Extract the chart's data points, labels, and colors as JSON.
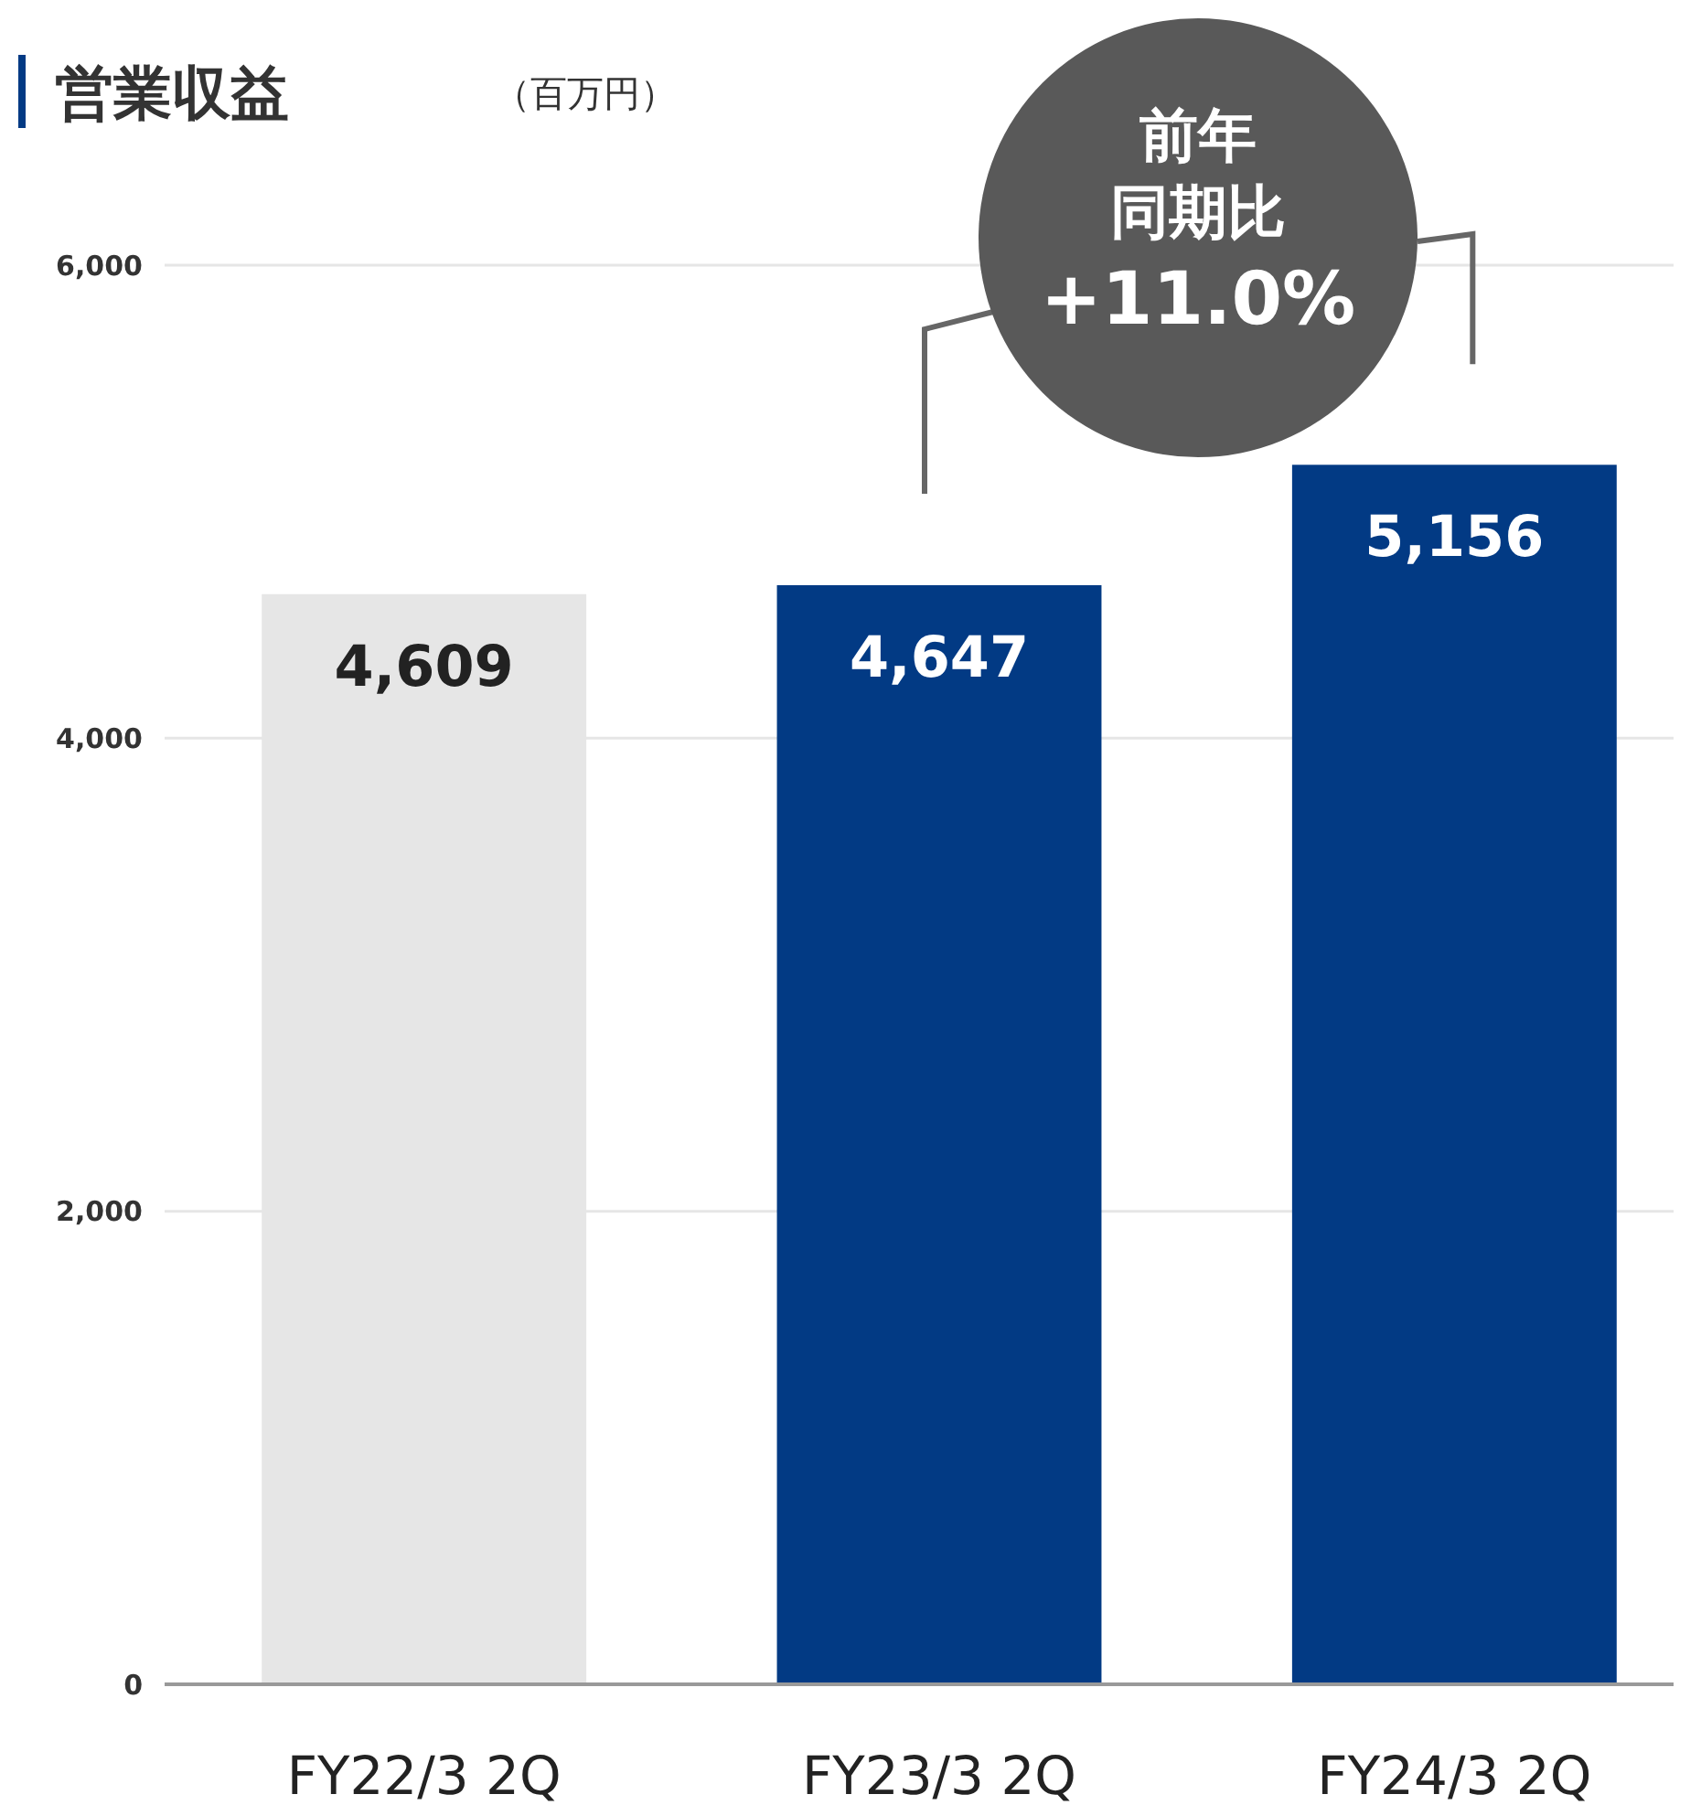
{
  "chart_data": {
    "type": "bar",
    "title": "営業収益",
    "subtitle": "（百万円）",
    "categories": [
      "FY22/3 2Q",
      "FY23/3 2Q",
      "FY24/3 2Q"
    ],
    "values": [
      4609,
      4647,
      5156
    ],
    "colors": [
      "#e6e6e6",
      "#023a84",
      "#023a84"
    ],
    "value_labels": [
      "4,609",
      "4,647",
      "5,156"
    ],
    "ylim": [
      0,
      6000
    ],
    "yticks": [
      0,
      {
        "value": 2000,
        "label": "2,000"
      },
      {
        "value": 4000,
        "label": "4,000"
      },
      {
        "value": 6000,
        "label": "6,000"
      }
    ],
    "grid": "y",
    "annotations": [
      "前年同期比+11.0%"
    ]
  }
}
